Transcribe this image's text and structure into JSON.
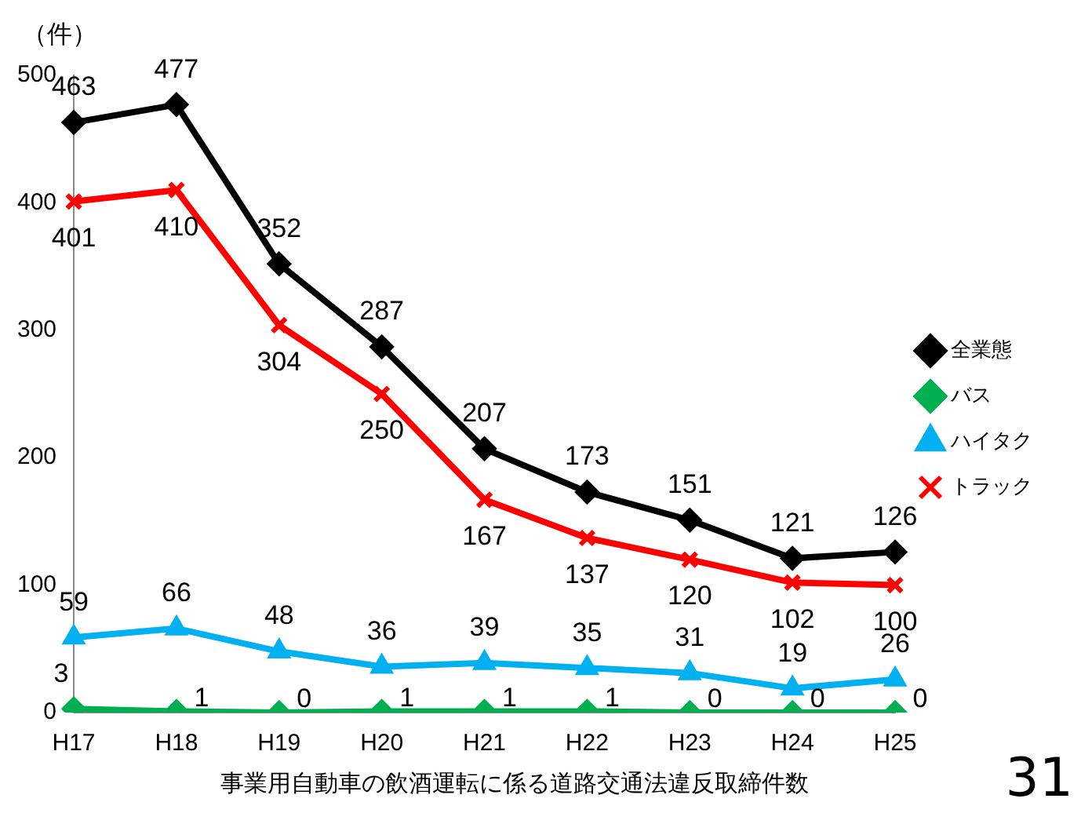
{
  "chart_data": {
    "type": "line",
    "ylabel": "（件）",
    "xlabel": "事業用自動車の飲酒運転に係る道路交通法違反取締件数",
    "annotations": [
      "31"
    ],
    "categories": [
      "H17",
      "H18",
      "H19",
      "H20",
      "H21",
      "H22",
      "H23",
      "H24",
      "H25"
    ],
    "series": [
      {
        "name": "全業態",
        "color": "#000000",
        "marker": "diamond",
        "values": [
          463,
          477,
          352,
          287,
          207,
          173,
          151,
          121,
          126
        ]
      },
      {
        "name": "バス",
        "color": "#00b050",
        "marker": "diamond",
        "values": [
          3,
          1,
          0,
          1,
          1,
          1,
          0,
          0,
          0
        ]
      },
      {
        "name": "ハイタク",
        "color": "#00b0f0",
        "marker": "triangle",
        "values": [
          59,
          66,
          48,
          36,
          39,
          35,
          31,
          19,
          26
        ]
      },
      {
        "name": "トラック",
        "color": "#ff0000",
        "marker": "cross",
        "values": [
          401,
          410,
          304,
          250,
          167,
          137,
          120,
          102,
          100
        ]
      }
    ],
    "ylim": [
      0,
      500
    ],
    "yticks": [
      0,
      100,
      200,
      300,
      400,
      500
    ],
    "grid": false,
    "legend": "right",
    "data_labels": true
  }
}
